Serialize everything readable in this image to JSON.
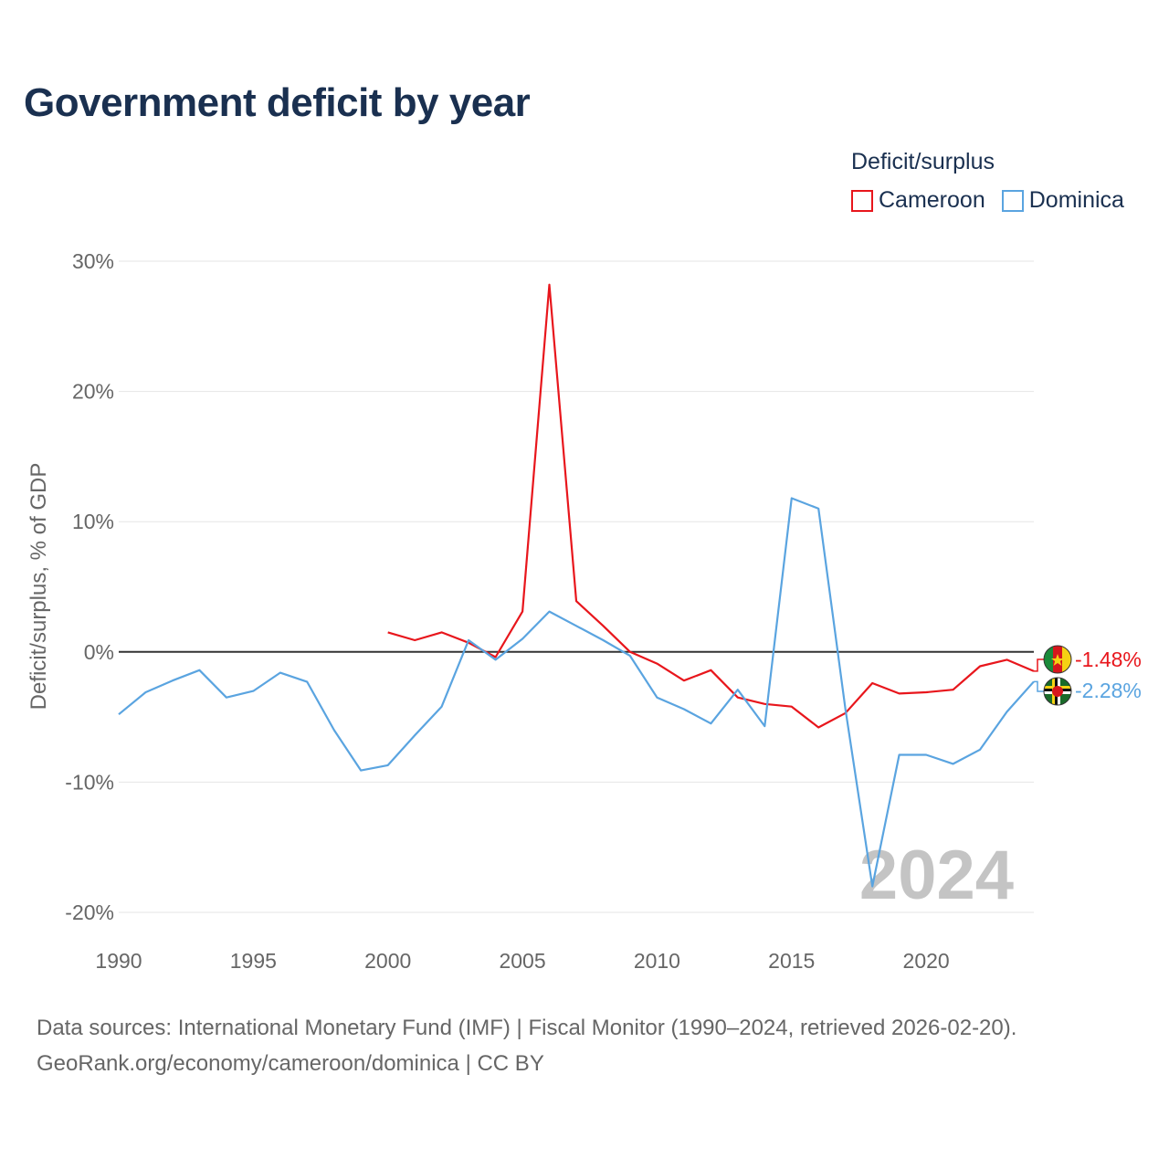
{
  "title": "Government deficit by year",
  "legend": {
    "title": "Deficit/surplus",
    "items": [
      {
        "label": "Cameroon",
        "color": "#e8161c"
      },
      {
        "label": "Dominica",
        "color": "#5aa4e0"
      }
    ]
  },
  "source": {
    "line1": "Data sources: International Monetary Fund (IMF) | Fiscal Monitor (1990–2024, retrieved 2026-02-20).",
    "line2": "GeoRank.org/economy/cameroon/dominica | CC BY"
  },
  "chart_data": {
    "type": "line",
    "title": "Government deficit by year",
    "xlabel": "",
    "ylabel": "Deficit/surplus, % of GDP",
    "xlim": [
      1990,
      2024
    ],
    "ylim": [
      -20,
      30
    ],
    "x_ticks": [
      1990,
      1995,
      2000,
      2005,
      2010,
      2015,
      2020
    ],
    "y_ticks": [
      30,
      20,
      10,
      0,
      -10,
      -20
    ],
    "y_tick_labels": [
      "30%",
      "20%",
      "10%",
      "0%",
      "-10%",
      "-20%"
    ],
    "watermark": "2024",
    "series": [
      {
        "name": "Cameroon",
        "color": "#e8161c",
        "end_label": "-1.48%",
        "points": [
          [
            2000,
            1.5
          ],
          [
            2001,
            0.9
          ],
          [
            2002,
            1.5
          ],
          [
            2003,
            0.7
          ],
          [
            2004,
            -0.4
          ],
          [
            2005,
            3.1
          ],
          [
            2006,
            28.2
          ],
          [
            2007,
            3.9
          ],
          [
            2008,
            2.0
          ],
          [
            2009,
            0.0
          ],
          [
            2010,
            -0.9
          ],
          [
            2011,
            -2.2
          ],
          [
            2012,
            -1.4
          ],
          [
            2013,
            -3.5
          ],
          [
            2014,
            -4.0
          ],
          [
            2015,
            -4.2
          ],
          [
            2016,
            -5.8
          ],
          [
            2017,
            -4.7
          ],
          [
            2018,
            -2.4
          ],
          [
            2019,
            -3.2
          ],
          [
            2020,
            -3.1
          ],
          [
            2021,
            -2.9
          ],
          [
            2022,
            -1.1
          ],
          [
            2023,
            -0.6
          ],
          [
            2024,
            -1.48
          ]
        ]
      },
      {
        "name": "Dominica",
        "color": "#5aa4e0",
        "end_label": "-2.28%",
        "points": [
          [
            1990,
            -4.8
          ],
          [
            1991,
            -3.1
          ],
          [
            1992,
            -2.2
          ],
          [
            1993,
            -1.4
          ],
          [
            1994,
            -3.5
          ],
          [
            1995,
            -3.0
          ],
          [
            1996,
            -1.6
          ],
          [
            1997,
            -2.3
          ],
          [
            1998,
            -6.0
          ],
          [
            1999,
            -9.1
          ],
          [
            2000,
            -8.7
          ],
          [
            2001,
            -6.4
          ],
          [
            2002,
            -4.2
          ],
          [
            2003,
            0.9
          ],
          [
            2004,
            -0.6
          ],
          [
            2005,
            1.0
          ],
          [
            2006,
            3.1
          ],
          [
            2007,
            2.0
          ],
          [
            2008,
            0.9
          ],
          [
            2009,
            -0.3
          ],
          [
            2010,
            -3.5
          ],
          [
            2011,
            -4.4
          ],
          [
            2012,
            -5.5
          ],
          [
            2013,
            -2.9
          ],
          [
            2014,
            -5.7
          ],
          [
            2015,
            11.8
          ],
          [
            2016,
            11.0
          ],
          [
            2017,
            -4.4
          ],
          [
            2018,
            -18.0
          ],
          [
            2019,
            -7.9
          ],
          [
            2020,
            -7.9
          ],
          [
            2021,
            -8.6
          ],
          [
            2022,
            -7.5
          ],
          [
            2023,
            -4.6
          ],
          [
            2024,
            -2.28
          ]
        ]
      }
    ]
  }
}
